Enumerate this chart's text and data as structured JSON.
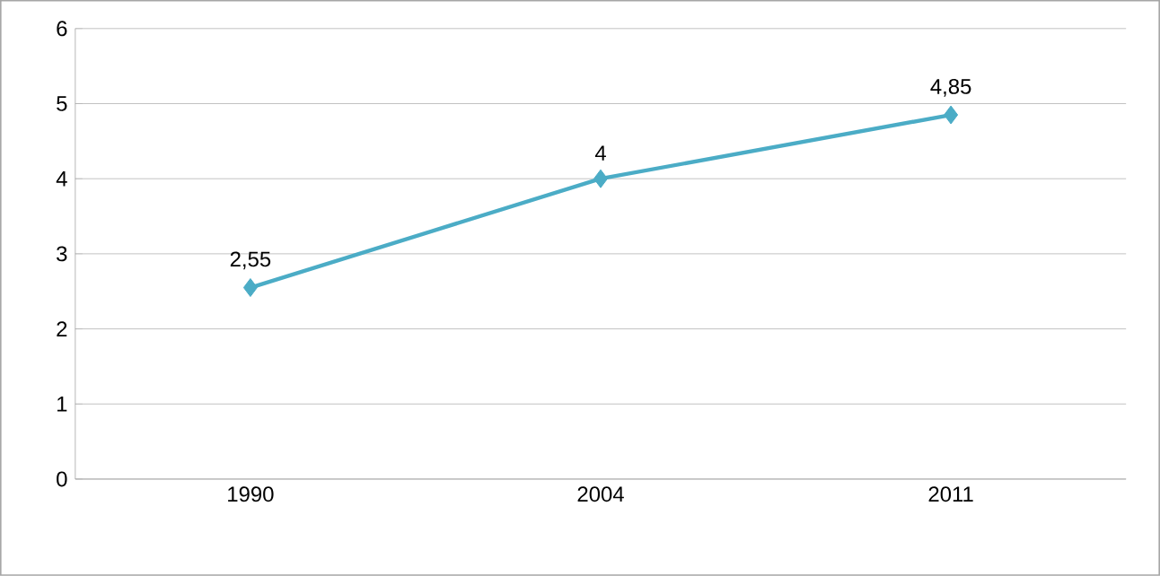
{
  "chart_data": {
    "type": "line",
    "categories": [
      "1990",
      "2004",
      "2011"
    ],
    "values": [
      2.55,
      4,
      4.85
    ],
    "value_labels": [
      "2,55",
      "4",
      "4,85"
    ],
    "color": "#4bacc6",
    "marker": "diamond",
    "ylim": [
      0,
      6
    ],
    "yticks": [
      0,
      1,
      2,
      3,
      4,
      5,
      6
    ],
    "grid": "y"
  }
}
